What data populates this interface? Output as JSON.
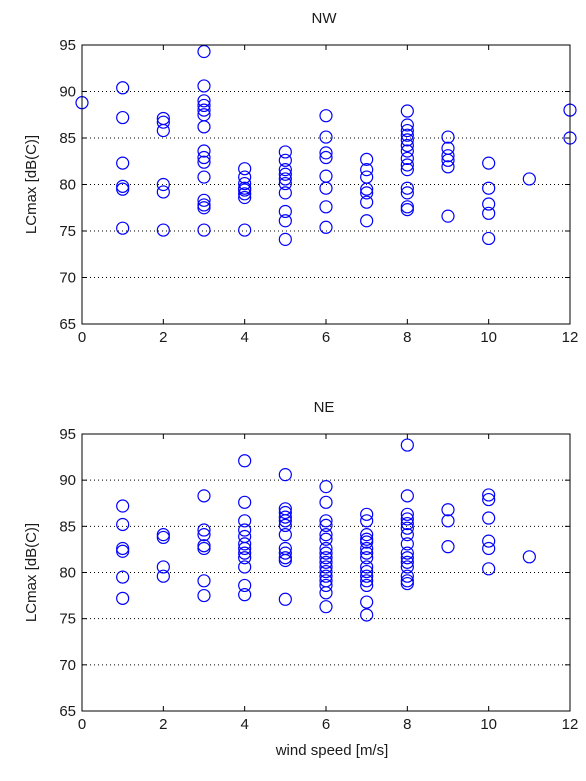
{
  "chart_data": [
    {
      "type": "scatter",
      "title": "NW",
      "xlabel": "",
      "ylabel": "LCmax [dB(C)]",
      "xlim": [
        0,
        12
      ],
      "ylim": [
        65,
        95
      ],
      "xticks": [
        0,
        2,
        4,
        6,
        8,
        10,
        12
      ],
      "yticks": [
        65,
        70,
        75,
        80,
        85,
        90,
        95
      ],
      "grid": "y-dotted",
      "marker": "open-circle",
      "color": "#0000ff",
      "points": [
        [
          0,
          88.8
        ],
        [
          1,
          90.4
        ],
        [
          1,
          87.2
        ],
        [
          1,
          82.3
        ],
        [
          1,
          79.8
        ],
        [
          1,
          79.5
        ],
        [
          1,
          75.3
        ],
        [
          2,
          87.1
        ],
        [
          2,
          86.7
        ],
        [
          2,
          85.8
        ],
        [
          2,
          80.0
        ],
        [
          2,
          79.2
        ],
        [
          2,
          75.1
        ],
        [
          3,
          94.3
        ],
        [
          3,
          90.6
        ],
        [
          3,
          89.0
        ],
        [
          3,
          88.5
        ],
        [
          3,
          88.0
        ],
        [
          3,
          87.5
        ],
        [
          3,
          86.2
        ],
        [
          3,
          83.6
        ],
        [
          3,
          82.9
        ],
        [
          3,
          82.4
        ],
        [
          3,
          80.8
        ],
        [
          3,
          78.3
        ],
        [
          3,
          77.8
        ],
        [
          3,
          77.5
        ],
        [
          3,
          75.1
        ],
        [
          4,
          81.7
        ],
        [
          4,
          80.8
        ],
        [
          4,
          80.1
        ],
        [
          4,
          79.6
        ],
        [
          4,
          79.4
        ],
        [
          4,
          79.0
        ],
        [
          4,
          78.6
        ],
        [
          4,
          75.1
        ],
        [
          5,
          83.5
        ],
        [
          5,
          82.6
        ],
        [
          5,
          81.6
        ],
        [
          5,
          81.1
        ],
        [
          5,
          80.6
        ],
        [
          5,
          80.1
        ],
        [
          5,
          79.1
        ],
        [
          5,
          77.1
        ],
        [
          5,
          76.1
        ],
        [
          5,
          74.1
        ],
        [
          6,
          87.4
        ],
        [
          6,
          85.1
        ],
        [
          6,
          83.4
        ],
        [
          6,
          82.9
        ],
        [
          6,
          80.9
        ],
        [
          6,
          79.6
        ],
        [
          6,
          77.6
        ],
        [
          6,
          75.4
        ],
        [
          7,
          82.7
        ],
        [
          7,
          81.6
        ],
        [
          7,
          80.8
        ],
        [
          7,
          79.5
        ],
        [
          7,
          79.1
        ],
        [
          7,
          78.1
        ],
        [
          7,
          76.1
        ],
        [
          8,
          87.9
        ],
        [
          8,
          86.4
        ],
        [
          8,
          85.8
        ],
        [
          8,
          85.3
        ],
        [
          8,
          84.8
        ],
        [
          8,
          84.2
        ],
        [
          8,
          83.6
        ],
        [
          8,
          82.8
        ],
        [
          8,
          82.1
        ],
        [
          8,
          81.6
        ],
        [
          8,
          79.6
        ],
        [
          8,
          79.1
        ],
        [
          8,
          77.6
        ],
        [
          8,
          77.3
        ],
        [
          9,
          85.1
        ],
        [
          9,
          83.9
        ],
        [
          9,
          83.1
        ],
        [
          9,
          82.6
        ],
        [
          9,
          81.9
        ],
        [
          9,
          76.6
        ],
        [
          10,
          82.3
        ],
        [
          10,
          79.6
        ],
        [
          10,
          77.9
        ],
        [
          10,
          76.9
        ],
        [
          10,
          74.2
        ],
        [
          11,
          80.6
        ],
        [
          12,
          88.0
        ],
        [
          12,
          85.0
        ]
      ]
    },
    {
      "type": "scatter",
      "title": "NE",
      "xlabel": "wind speed [m/s]",
      "ylabel": "LCmax [dB(C)]",
      "xlim": [
        0,
        12
      ],
      "ylim": [
        65,
        95
      ],
      "xticks": [
        0,
        2,
        4,
        6,
        8,
        10,
        12
      ],
      "yticks": [
        65,
        70,
        75,
        80,
        85,
        90,
        95
      ],
      "grid": "y-dotted",
      "marker": "open-circle",
      "color": "#0000ff",
      "points": [
        [
          1,
          87.2
        ],
        [
          1,
          85.2
        ],
        [
          1,
          82.6
        ],
        [
          1,
          82.3
        ],
        [
          1,
          79.5
        ],
        [
          1,
          77.2
        ],
        [
          2,
          84.1
        ],
        [
          2,
          83.8
        ],
        [
          2,
          80.6
        ],
        [
          2,
          79.6
        ],
        [
          3,
          88.3
        ],
        [
          3,
          84.6
        ],
        [
          3,
          84.1
        ],
        [
          3,
          82.9
        ],
        [
          3,
          82.6
        ],
        [
          3,
          79.1
        ],
        [
          3,
          77.5
        ],
        [
          4,
          92.1
        ],
        [
          4,
          87.6
        ],
        [
          4,
          85.6
        ],
        [
          4,
          84.6
        ],
        [
          4,
          83.9
        ],
        [
          4,
          83.1
        ],
        [
          4,
          82.6
        ],
        [
          4,
          82.1
        ],
        [
          4,
          81.6
        ],
        [
          4,
          80.6
        ],
        [
          4,
          78.6
        ],
        [
          4,
          77.6
        ],
        [
          5,
          90.6
        ],
        [
          5,
          86.9
        ],
        [
          5,
          86.5
        ],
        [
          5,
          86.0
        ],
        [
          5,
          85.6
        ],
        [
          5,
          85.1
        ],
        [
          5,
          84.1
        ],
        [
          5,
          82.6
        ],
        [
          5,
          82.1
        ],
        [
          5,
          81.6
        ],
        [
          5,
          81.3
        ],
        [
          5,
          77.1
        ],
        [
          6,
          89.3
        ],
        [
          6,
          87.6
        ],
        [
          6,
          85.6
        ],
        [
          6,
          85.1
        ],
        [
          6,
          84.1
        ],
        [
          6,
          83.6
        ],
        [
          6,
          82.6
        ],
        [
          6,
          82.1
        ],
        [
          6,
          81.6
        ],
        [
          6,
          81.1
        ],
        [
          6,
          80.6
        ],
        [
          6,
          80.1
        ],
        [
          6,
          79.6
        ],
        [
          6,
          79.1
        ],
        [
          6,
          78.6
        ],
        [
          6,
          77.8
        ],
        [
          6,
          76.3
        ],
        [
          7,
          86.3
        ],
        [
          7,
          85.6
        ],
        [
          7,
          84.1
        ],
        [
          7,
          83.6
        ],
        [
          7,
          83.3
        ],
        [
          7,
          82.6
        ],
        [
          7,
          82.1
        ],
        [
          7,
          81.6
        ],
        [
          7,
          80.6
        ],
        [
          7,
          80.1
        ],
        [
          7,
          79.6
        ],
        [
          7,
          79.1
        ],
        [
          7,
          78.6
        ],
        [
          7,
          76.8
        ],
        [
          7,
          75.4
        ],
        [
          8,
          93.8
        ],
        [
          8,
          88.3
        ],
        [
          8,
          86.3
        ],
        [
          8,
          85.8
        ],
        [
          8,
          85.3
        ],
        [
          8,
          84.8
        ],
        [
          8,
          84.1
        ],
        [
          8,
          83.1
        ],
        [
          8,
          82.1
        ],
        [
          8,
          81.6
        ],
        [
          8,
          81.1
        ],
        [
          8,
          80.6
        ],
        [
          8,
          79.6
        ],
        [
          8,
          79.1
        ],
        [
          8,
          78.8
        ],
        [
          9,
          86.8
        ],
        [
          9,
          85.6
        ],
        [
          9,
          82.8
        ],
        [
          10,
          88.4
        ],
        [
          10,
          87.9
        ],
        [
          10,
          85.9
        ],
        [
          10,
          83.4
        ],
        [
          10,
          82.6
        ],
        [
          10,
          80.4
        ],
        [
          11,
          81.7
        ]
      ]
    }
  ]
}
